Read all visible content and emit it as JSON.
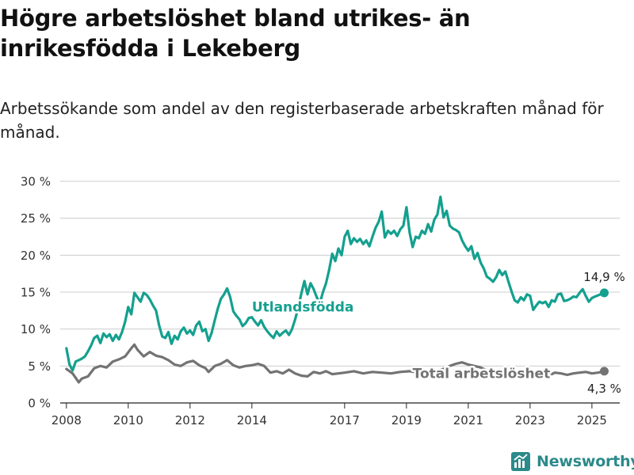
{
  "title": "Högre arbetslöshet bland utrikes- än inrikesfödda i Lekeberg",
  "subtitle": "Arbetssökande som andel av den registerbaserade arbetskraften månad för månad.",
  "brand": "Newsworthy",
  "colors": {
    "utlandsfodda": "#14a08f",
    "total": "#737373",
    "grid": "#cccccc",
    "axis": "#222222",
    "brand": "#2b8a8a"
  },
  "chart_data": {
    "type": "line",
    "title": "Högre arbetslöshet bland utrikes- än inrikesfödda i Lekeberg",
    "xlabel": "",
    "ylabel": "",
    "xlim": [
      2007.8,
      2025.9
    ],
    "ylim": [
      0,
      30
    ],
    "y_ticks": [
      0,
      5,
      10,
      15,
      20,
      25,
      30
    ],
    "y_tick_labels": [
      "0 %",
      "5 %",
      "10 %",
      "15 %",
      "20 %",
      "25 %",
      "30 %"
    ],
    "x_ticks": [
      2008,
      2010,
      2012,
      2014,
      2017,
      2019,
      2021,
      2023,
      2025
    ],
    "x_tick_labels": [
      "2008",
      "2010",
      "2012",
      "2014",
      "2017",
      "2019",
      "2021",
      "2023",
      "2025"
    ],
    "grid": "horizontal",
    "series": [
      {
        "name": "Utlandsfödda",
        "color": "#14a08f",
        "end_label": "14,9 %",
        "points": [
          [
            2008.0,
            7.4
          ],
          [
            2008.1,
            5.2
          ],
          [
            2008.2,
            4.4
          ],
          [
            2008.3,
            5.6
          ],
          [
            2008.4,
            5.8
          ],
          [
            2008.5,
            6.0
          ],
          [
            2008.6,
            6.3
          ],
          [
            2008.7,
            7.0
          ],
          [
            2008.8,
            7.8
          ],
          [
            2008.9,
            8.8
          ],
          [
            2009.0,
            9.1
          ],
          [
            2009.1,
            8.1
          ],
          [
            2009.2,
            9.4
          ],
          [
            2009.3,
            8.9
          ],
          [
            2009.4,
            9.3
          ],
          [
            2009.5,
            8.4
          ],
          [
            2009.6,
            9.2
          ],
          [
            2009.7,
            8.6
          ],
          [
            2009.8,
            9.6
          ],
          [
            2009.9,
            11.0
          ],
          [
            2010.0,
            13.0
          ],
          [
            2010.1,
            12.0
          ],
          [
            2010.2,
            14.9
          ],
          [
            2010.3,
            14.3
          ],
          [
            2010.4,
            13.7
          ],
          [
            2010.5,
            14.9
          ],
          [
            2010.6,
            14.6
          ],
          [
            2010.7,
            14.0
          ],
          [
            2010.8,
            13.2
          ],
          [
            2010.9,
            12.5
          ],
          [
            2011.0,
            10.5
          ],
          [
            2011.1,
            9.0
          ],
          [
            2011.2,
            8.8
          ],
          [
            2011.3,
            9.6
          ],
          [
            2011.4,
            8.0
          ],
          [
            2011.5,
            9.1
          ],
          [
            2011.6,
            8.6
          ],
          [
            2011.7,
            9.7
          ],
          [
            2011.8,
            10.2
          ],
          [
            2011.9,
            9.4
          ],
          [
            2012.0,
            9.8
          ],
          [
            2012.1,
            9.2
          ],
          [
            2012.2,
            10.5
          ],
          [
            2012.3,
            11.0
          ],
          [
            2012.4,
            9.7
          ],
          [
            2012.5,
            10.0
          ],
          [
            2012.6,
            8.4
          ],
          [
            2012.7,
            9.5
          ],
          [
            2012.8,
            11.2
          ],
          [
            2012.9,
            12.8
          ],
          [
            2013.0,
            14.1
          ],
          [
            2013.1,
            14.7
          ],
          [
            2013.2,
            15.5
          ],
          [
            2013.3,
            14.3
          ],
          [
            2013.4,
            12.4
          ],
          [
            2013.5,
            11.8
          ],
          [
            2013.6,
            11.3
          ],
          [
            2013.7,
            10.4
          ],
          [
            2013.8,
            10.8
          ],
          [
            2013.9,
            11.5
          ],
          [
            2014.0,
            11.6
          ],
          [
            2014.1,
            11.0
          ],
          [
            2014.2,
            10.5
          ],
          [
            2014.3,
            11.2
          ],
          [
            2014.4,
            10.3
          ],
          [
            2014.5,
            9.7
          ],
          [
            2014.6,
            9.2
          ],
          [
            2014.7,
            8.8
          ],
          [
            2014.8,
            9.7
          ],
          [
            2014.9,
            9.1
          ],
          [
            2015.0,
            9.5
          ],
          [
            2015.1,
            9.8
          ],
          [
            2015.2,
            9.2
          ],
          [
            2015.3,
            10.0
          ],
          [
            2015.4,
            11.3
          ],
          [
            2015.5,
            12.9
          ],
          [
            2015.6,
            14.8
          ],
          [
            2015.7,
            16.5
          ],
          [
            2015.8,
            14.7
          ],
          [
            2015.9,
            16.2
          ],
          [
            2016.0,
            15.4
          ],
          [
            2016.1,
            14.3
          ],
          [
            2016.2,
            13.5
          ],
          [
            2016.3,
            15.0
          ],
          [
            2016.4,
            16.2
          ],
          [
            2016.5,
            18.0
          ],
          [
            2016.6,
            20.2
          ],
          [
            2016.7,
            19.2
          ],
          [
            2016.8,
            20.9
          ],
          [
            2016.9,
            20.0
          ],
          [
            2017.0,
            22.5
          ],
          [
            2017.1,
            23.3
          ],
          [
            2017.2,
            21.5
          ],
          [
            2017.3,
            22.3
          ],
          [
            2017.4,
            21.8
          ],
          [
            2017.5,
            22.2
          ],
          [
            2017.6,
            21.5
          ],
          [
            2017.7,
            22.0
          ],
          [
            2017.8,
            21.2
          ],
          [
            2017.9,
            22.5
          ],
          [
            2018.0,
            23.7
          ],
          [
            2018.1,
            24.5
          ],
          [
            2018.2,
            25.9
          ],
          [
            2018.3,
            22.4
          ],
          [
            2018.4,
            23.3
          ],
          [
            2018.5,
            22.9
          ],
          [
            2018.6,
            23.3
          ],
          [
            2018.7,
            22.6
          ],
          [
            2018.8,
            23.5
          ],
          [
            2018.9,
            24.0
          ],
          [
            2019.0,
            26.5
          ],
          [
            2019.1,
            23.1
          ],
          [
            2019.2,
            21.1
          ],
          [
            2019.3,
            22.5
          ],
          [
            2019.4,
            22.3
          ],
          [
            2019.5,
            23.3
          ],
          [
            2019.6,
            22.9
          ],
          [
            2019.7,
            24.2
          ],
          [
            2019.8,
            23.2
          ],
          [
            2019.9,
            24.8
          ],
          [
            2020.0,
            25.5
          ],
          [
            2020.1,
            27.9
          ],
          [
            2020.2,
            25.1
          ],
          [
            2020.3,
            26.0
          ],
          [
            2020.4,
            24.0
          ],
          [
            2020.5,
            23.6
          ],
          [
            2020.6,
            23.4
          ],
          [
            2020.7,
            23.1
          ],
          [
            2020.8,
            22.0
          ],
          [
            2020.9,
            21.2
          ],
          [
            2021.0,
            20.6
          ],
          [
            2021.1,
            21.2
          ],
          [
            2021.2,
            19.5
          ],
          [
            2021.3,
            20.3
          ],
          [
            2021.4,
            19.0
          ],
          [
            2021.5,
            18.2
          ],
          [
            2021.6,
            17.1
          ],
          [
            2021.7,
            16.8
          ],
          [
            2021.8,
            16.4
          ],
          [
            2021.9,
            17.0
          ],
          [
            2022.0,
            18.0
          ],
          [
            2022.1,
            17.3
          ],
          [
            2022.2,
            17.8
          ],
          [
            2022.3,
            16.4
          ],
          [
            2022.4,
            15.1
          ],
          [
            2022.5,
            13.9
          ],
          [
            2022.6,
            13.6
          ],
          [
            2022.7,
            14.3
          ],
          [
            2022.8,
            13.9
          ],
          [
            2022.9,
            14.7
          ],
          [
            2023.0,
            14.5
          ],
          [
            2023.1,
            12.6
          ],
          [
            2023.2,
            13.2
          ],
          [
            2023.3,
            13.7
          ],
          [
            2023.4,
            13.5
          ],
          [
            2023.5,
            13.7
          ],
          [
            2023.6,
            13.0
          ],
          [
            2023.7,
            13.9
          ],
          [
            2023.8,
            13.7
          ],
          [
            2023.9,
            14.7
          ],
          [
            2024.0,
            14.8
          ],
          [
            2024.1,
            13.8
          ],
          [
            2024.2,
            13.9
          ],
          [
            2024.3,
            14.1
          ],
          [
            2024.4,
            14.4
          ],
          [
            2024.5,
            14.3
          ],
          [
            2024.6,
            14.9
          ],
          [
            2024.7,
            15.4
          ],
          [
            2024.8,
            14.5
          ],
          [
            2024.9,
            13.7
          ],
          [
            2025.0,
            14.2
          ],
          [
            2025.1,
            14.4
          ],
          [
            2025.4,
            14.9
          ]
        ]
      },
      {
        "name": "Total arbetslöshet",
        "color": "#737373",
        "end_label": "4,3 %",
        "points": [
          [
            2008.0,
            4.6
          ],
          [
            2008.2,
            4.0
          ],
          [
            2008.3,
            3.4
          ],
          [
            2008.4,
            2.8
          ],
          [
            2008.5,
            3.3
          ],
          [
            2008.7,
            3.6
          ],
          [
            2008.9,
            4.7
          ],
          [
            2009.1,
            5.0
          ],
          [
            2009.3,
            4.8
          ],
          [
            2009.5,
            5.6
          ],
          [
            2009.7,
            5.9
          ],
          [
            2009.9,
            6.3
          ],
          [
            2010.1,
            7.4
          ],
          [
            2010.2,
            7.9
          ],
          [
            2010.3,
            7.2
          ],
          [
            2010.5,
            6.3
          ],
          [
            2010.7,
            6.9
          ],
          [
            2010.9,
            6.4
          ],
          [
            2011.1,
            6.2
          ],
          [
            2011.3,
            5.8
          ],
          [
            2011.5,
            5.2
          ],
          [
            2011.7,
            5.0
          ],
          [
            2011.9,
            5.5
          ],
          [
            2012.1,
            5.7
          ],
          [
            2012.3,
            5.1
          ],
          [
            2012.5,
            4.7
          ],
          [
            2012.6,
            4.2
          ],
          [
            2012.8,
            5.0
          ],
          [
            2013.0,
            5.3
          ],
          [
            2013.2,
            5.8
          ],
          [
            2013.4,
            5.1
          ],
          [
            2013.6,
            4.8
          ],
          [
            2013.8,
            5.0
          ],
          [
            2014.0,
            5.1
          ],
          [
            2014.2,
            5.3
          ],
          [
            2014.4,
            5.0
          ],
          [
            2014.6,
            4.1
          ],
          [
            2014.8,
            4.3
          ],
          [
            2015.0,
            4.0
          ],
          [
            2015.2,
            4.5
          ],
          [
            2015.4,
            4.0
          ],
          [
            2015.6,
            3.7
          ],
          [
            2015.8,
            3.6
          ],
          [
            2016.0,
            4.2
          ],
          [
            2016.2,
            4.0
          ],
          [
            2016.4,
            4.3
          ],
          [
            2016.6,
            3.9
          ],
          [
            2016.8,
            4.0
          ],
          [
            2017.0,
            4.1
          ],
          [
            2017.3,
            4.3
          ],
          [
            2017.6,
            4.0
          ],
          [
            2017.9,
            4.2
          ],
          [
            2018.2,
            4.1
          ],
          [
            2018.5,
            4.0
          ],
          [
            2018.8,
            4.2
          ],
          [
            2019.1,
            4.3
          ],
          [
            2019.4,
            4.1
          ],
          [
            2019.7,
            4.3
          ],
          [
            2020.0,
            4.4
          ],
          [
            2020.2,
            4.6
          ],
          [
            2020.4,
            5.0
          ],
          [
            2020.6,
            5.3
          ],
          [
            2020.8,
            5.5
          ],
          [
            2021.0,
            5.2
          ],
          [
            2021.2,
            5.0
          ],
          [
            2021.4,
            4.8
          ],
          [
            2021.6,
            4.4
          ],
          [
            2021.8,
            4.2
          ],
          [
            2022.0,
            4.5
          ],
          [
            2022.2,
            4.1
          ],
          [
            2022.4,
            3.7
          ],
          [
            2022.6,
            3.8
          ],
          [
            2022.8,
            3.9
          ],
          [
            2023.0,
            3.8
          ],
          [
            2023.2,
            3.4
          ],
          [
            2023.4,
            3.5
          ],
          [
            2023.6,
            3.7
          ],
          [
            2023.8,
            4.1
          ],
          [
            2024.0,
            4.0
          ],
          [
            2024.2,
            3.8
          ],
          [
            2024.4,
            4.0
          ],
          [
            2024.6,
            4.1
          ],
          [
            2024.8,
            4.2
          ],
          [
            2025.0,
            4.0
          ],
          [
            2025.2,
            4.1
          ],
          [
            2025.4,
            4.3
          ]
        ]
      }
    ],
    "annotations": [
      {
        "text": "Utlandsfödda",
        "series": "Utlandsfödda",
        "x": 2014.0,
        "y": 12.4
      },
      {
        "text": "Total arbetslöshet",
        "series": "Total arbetslöshet",
        "x": 2019.2,
        "y": 3.4
      }
    ]
  }
}
